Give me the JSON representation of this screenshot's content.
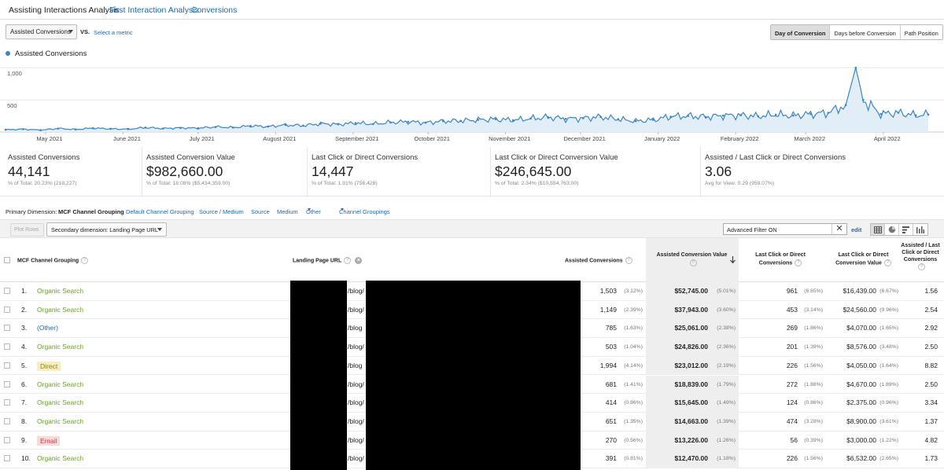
{
  "tabs": [
    {
      "label": "Assisting Interactions Analysis",
      "active": true
    },
    {
      "label": "First Interaction Analysis",
      "active": false
    },
    {
      "label": "Conversions",
      "active": false
    }
  ],
  "metric_row": {
    "selected_metric": "Assisted Conversions",
    "vs_label": "VS.",
    "select_metric_link": "Select a metric",
    "segments": [
      {
        "label": "Day of Conversion",
        "active": true
      },
      {
        "label": "Days before Conversion",
        "active": false
      },
      {
        "label": "Path Position",
        "active": false
      }
    ]
  },
  "chart_data": {
    "type": "area",
    "title": "",
    "series": [
      {
        "name": "Assisted Conversions",
        "color": "#3b86c4"
      }
    ],
    "y_ticks": [
      "1,000",
      "500"
    ],
    "ylim": [
      0,
      1100
    ],
    "x_tick_labels": [
      "May 2021",
      "June 2021",
      "July 2021",
      "August 2021",
      "September 2021",
      "October 2021",
      "November 2021",
      "December 2021",
      "January 2022",
      "February 2022",
      "March 2022",
      "April 2022"
    ],
    "x_range": [
      "2021-04-15",
      "2022-04-19"
    ],
    "weekly_points": [
      [
        "2021-04-15",
        35
      ],
      [
        "2021-04-22",
        45
      ],
      [
        "2021-04-29",
        30
      ],
      [
        "2021-05-06",
        55
      ],
      [
        "2021-05-13",
        40
      ],
      [
        "2021-05-20",
        60
      ],
      [
        "2021-05-27",
        50
      ],
      [
        "2021-06-03",
        45
      ],
      [
        "2021-06-10",
        70
      ],
      [
        "2021-06-17",
        55
      ],
      [
        "2021-06-24",
        65
      ],
      [
        "2021-07-01",
        60
      ],
      [
        "2021-07-08",
        80
      ],
      [
        "2021-07-15",
        70
      ],
      [
        "2021-07-22",
        95
      ],
      [
        "2021-07-29",
        85
      ],
      [
        "2021-08-05",
        110
      ],
      [
        "2021-08-12",
        100
      ],
      [
        "2021-08-19",
        130
      ],
      [
        "2021-08-26",
        120
      ],
      [
        "2021-09-02",
        140
      ],
      [
        "2021-09-09",
        125
      ],
      [
        "2021-09-16",
        150
      ],
      [
        "2021-09-23",
        160
      ],
      [
        "2021-09-30",
        145
      ],
      [
        "2021-10-07",
        170
      ],
      [
        "2021-10-14",
        175
      ],
      [
        "2021-10-21",
        190
      ],
      [
        "2021-10-28",
        200
      ],
      [
        "2021-11-04",
        185
      ],
      [
        "2021-11-11",
        210
      ],
      [
        "2021-11-18",
        230
      ],
      [
        "2021-11-25",
        205
      ],
      [
        "2021-12-02",
        215
      ],
      [
        "2021-12-09",
        235
      ],
      [
        "2021-12-16",
        200
      ],
      [
        "2021-12-23",
        170
      ],
      [
        "2021-12-30",
        190
      ],
      [
        "2022-01-06",
        240
      ],
      [
        "2022-01-13",
        250
      ],
      [
        "2022-01-20",
        235
      ],
      [
        "2022-01-27",
        255
      ],
      [
        "2022-02-03",
        260
      ],
      [
        "2022-02-10",
        245
      ],
      [
        "2022-02-17",
        270
      ],
      [
        "2022-02-24",
        255
      ],
      [
        "2022-03-03",
        280
      ],
      [
        "2022-03-10",
        300
      ],
      [
        "2022-03-17",
        420
      ],
      [
        "2022-03-21",
        1000
      ],
      [
        "2022-03-24",
        500
      ],
      [
        "2022-03-31",
        280
      ],
      [
        "2022-04-07",
        300
      ],
      [
        "2022-04-14",
        260
      ],
      [
        "2022-04-19",
        270
      ]
    ]
  },
  "scorecards": [
    {
      "label": "Assisted Conversions",
      "value": "44,141",
      "sub": "% of Total: 20.23% (218,227)"
    },
    {
      "label": "Assisted Conversion Value",
      "value": "$982,660.00",
      "sub": "% of Total: 18.08% ($5,434,359.00)"
    },
    {
      "label": "Last Click or Direct Conversions",
      "value": "14,447",
      "sub": "% of Total: 1.91% (756,428)"
    },
    {
      "label": "Last Click or Direct Conversion Value",
      "value": "$246,645.00",
      "sub": "% of Total: 2.34% ($10,554,763.00)"
    },
    {
      "label": "Assisted / Last Click or Direct Conversions",
      "value": "3.06",
      "sub": "Avg for View: 0.29 (959.07%)"
    }
  ],
  "dimensions": {
    "label": "Primary Dimension:",
    "current": "MCF Channel Grouping",
    "options": [
      "Default Channel Grouping",
      "Source / Medium",
      "Source",
      "Medium"
    ],
    "other": "Other",
    "groupings": "Channel Groupings"
  },
  "toolbar": {
    "plot_rows": "Plot Rows",
    "secondary_dimension": "Secondary dimension: Landing Page URL",
    "filter_value": "Advanced Filter ON",
    "clear": "✕",
    "edit": "edit"
  },
  "table": {
    "headers": {
      "channel": "MCF Channel Grouping",
      "landing": "Landing Page URL",
      "assisted_conv": "Assisted Conversions",
      "assisted_value": "Assisted Conversion Value",
      "last_click_conv": "Last Click or Direct Conversions",
      "last_click_value": "Last Click or Direct Conversion Value",
      "ratio": "Assisted / Last Click or Direct Conversions"
    },
    "rows": [
      {
        "idx": "1.",
        "channel": "Organic Search",
        "kind": "organic",
        "url": "/blog/",
        "ac": "1,503",
        "ac_pct": "(3.12%)",
        "av": "$52,745.00",
        "av_pct": "(5.01%)",
        "lc": "961",
        "lc_pct": "(6.65%)",
        "lv": "$16,439.00",
        "lv_pct": "(6.67%)",
        "ratio": "1.56"
      },
      {
        "idx": "2.",
        "channel": "Organic Search",
        "kind": "organic",
        "url": "/blog/",
        "ac": "1,149",
        "ac_pct": "(2.39%)",
        "av": "$37,943.00",
        "av_pct": "(3.60%)",
        "lc": "453",
        "lc_pct": "(3.14%)",
        "lv": "$24,560.00",
        "lv_pct": "(9.96%)",
        "ratio": "2.54"
      },
      {
        "idx": "3.",
        "channel": "(Other)",
        "kind": "other",
        "url": "/blog",
        "ac": "785",
        "ac_pct": "(1.63%)",
        "av": "$25,061.00",
        "av_pct": "(2.38%)",
        "lc": "269",
        "lc_pct": "(1.86%)",
        "lv": "$4,070.00",
        "lv_pct": "(1.65%)",
        "ratio": "2.92"
      },
      {
        "idx": "4.",
        "channel": "Organic Search",
        "kind": "organic",
        "url": "/blog/",
        "ac": "503",
        "ac_pct": "(1.04%)",
        "av": "$24,826.00",
        "av_pct": "(2.36%)",
        "lc": "201",
        "lc_pct": "(1.39%)",
        "lv": "$8,576.00",
        "lv_pct": "(3.48%)",
        "ratio": "2.50"
      },
      {
        "idx": "5.",
        "channel": "Direct",
        "kind": "direct",
        "url": "/blog",
        "ac": "1,994",
        "ac_pct": "(4.14%)",
        "av": "$23,012.00",
        "av_pct": "(2.19%)",
        "lc": "226",
        "lc_pct": "(1.56%)",
        "lv": "$4,050.00",
        "lv_pct": "(1.64%)",
        "ratio": "8.82"
      },
      {
        "idx": "6.",
        "channel": "Organic Search",
        "kind": "organic",
        "url": "/blog/",
        "ac": "681",
        "ac_pct": "(1.41%)",
        "av": "$18,839.00",
        "av_pct": "(1.79%)",
        "lc": "272",
        "lc_pct": "(1.88%)",
        "lv": "$4,670.00",
        "lv_pct": "(1.89%)",
        "ratio": "2.50"
      },
      {
        "idx": "7.",
        "channel": "Organic Search",
        "kind": "organic",
        "url": "/blog/",
        "ac": "414",
        "ac_pct": "(0.86%)",
        "av": "$15,645.00",
        "av_pct": "(1.49%)",
        "lc": "124",
        "lc_pct": "(0.86%)",
        "lv": "$2,375.00",
        "lv_pct": "(0.96%)",
        "ratio": "3.34"
      },
      {
        "idx": "8.",
        "channel": "Organic Search",
        "kind": "organic",
        "url": "/blog/",
        "ac": "651",
        "ac_pct": "(1.35%)",
        "av": "$14,663.00",
        "av_pct": "(1.39%)",
        "lc": "474",
        "lc_pct": "(3.28%)",
        "lv": "$8,900.00",
        "lv_pct": "(3.61%)",
        "ratio": "1.37"
      },
      {
        "idx": "9.",
        "channel": "Email",
        "kind": "email",
        "url": "/blog/",
        "ac": "270",
        "ac_pct": "(0.56%)",
        "av": "$13,226.00",
        "av_pct": "(1.26%)",
        "lc": "56",
        "lc_pct": "(0.39%)",
        "lv": "$3,000.00",
        "lv_pct": "(1.22%)",
        "ratio": "4.82"
      },
      {
        "idx": "10.",
        "channel": "Organic Search",
        "kind": "organic",
        "url": "/blog/",
        "ac": "391",
        "ac_pct": "(0.81%)",
        "av": "$12,470.00",
        "av_pct": "(1.18%)",
        "lc": "226",
        "lc_pct": "(1.56%)",
        "lv": "$6,532.00",
        "lv_pct": "(2.65%)",
        "ratio": "1.73"
      }
    ]
  }
}
